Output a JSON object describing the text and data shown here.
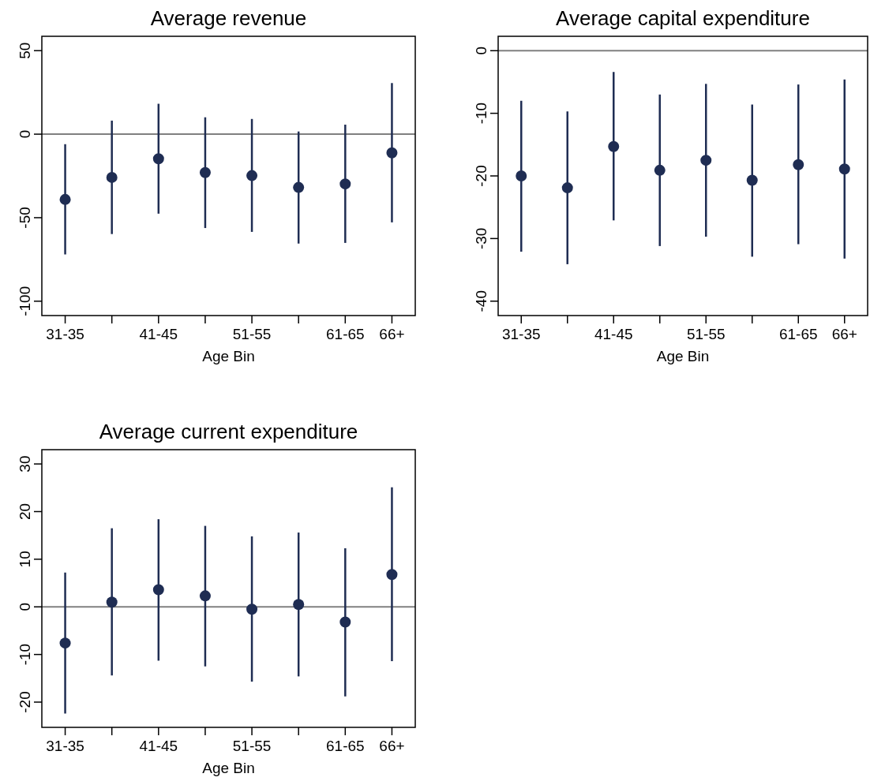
{
  "chart_data": [
    {
      "type": "scatter",
      "title": "Average revenue",
      "xlabel": "Age Bin",
      "categories": [
        "31-35",
        null,
        "41-45",
        null,
        "51-55",
        null,
        "61-65",
        "66+"
      ],
      "color": "#1f2d53",
      "marker": "circle",
      "values": [
        -39.1,
        -25.9,
        -14.7,
        -23.0,
        -24.8,
        -31.9,
        -29.8,
        -11.2
      ],
      "errors": [
        [
          -72.0,
          -6.0
        ],
        [
          -59.8,
          8.1
        ],
        [
          -47.6,
          18.2
        ],
        [
          -56.2,
          10.1
        ],
        [
          -58.5,
          9.1
        ],
        [
          -65.5,
          1.6
        ],
        [
          -65.1,
          5.7
        ],
        [
          -52.8,
          30.6
        ]
      ],
      "ylim": [
        -108.6,
        58.6
      ],
      "yticks": [
        -100,
        -50,
        0,
        50
      ],
      "ref_lines": [
        {
          "axis": "y",
          "value": 0,
          "color": "#808080"
        }
      ]
    },
    {
      "type": "scatter",
      "title": "Average capital expenditure",
      "xlabel": "Age Bin",
      "categories": [
        "31-35",
        null,
        "41-45",
        null,
        "51-55",
        null,
        "61-65",
        "66+"
      ],
      "color": "#1f2d53",
      "marker": "circle",
      "values": [
        -20.0,
        -21.9,
        -15.3,
        -19.1,
        -17.5,
        -20.7,
        -18.2,
        -18.9
      ],
      "errors": [
        [
          -32.1,
          -8.0
        ],
        [
          -34.1,
          -9.7
        ],
        [
          -27.1,
          -3.4
        ],
        [
          -31.2,
          -7.0
        ],
        [
          -29.7,
          -5.3
        ],
        [
          -32.9,
          -8.6
        ],
        [
          -30.9,
          -5.4
        ],
        [
          -33.2,
          -4.6
        ]
      ],
      "ylim": [
        -42.3,
        2.3
      ],
      "yticks": [
        -40,
        -30,
        -20,
        -10,
        0
      ],
      "ref_lines": [
        {
          "axis": "y",
          "value": 0,
          "color": "#808080"
        }
      ]
    },
    {
      "type": "scatter",
      "title": "Average current expenditure",
      "xlabel": "Age Bin",
      "categories": [
        "31-35",
        null,
        "41-45",
        null,
        "51-55",
        null,
        "61-65",
        "66+"
      ],
      "color": "#1f2d53",
      "marker": "circle",
      "values": [
        -7.6,
        1.0,
        3.6,
        2.3,
        -0.5,
        0.5,
        -3.2,
        6.8
      ],
      "errors": [
        [
          -22.4,
          7.2
        ],
        [
          -14.4,
          16.5
        ],
        [
          -11.3,
          18.4
        ],
        [
          -12.5,
          17.0
        ],
        [
          -15.7,
          14.8
        ],
        [
          -14.6,
          15.6
        ],
        [
          -18.8,
          12.3
        ],
        [
          -11.4,
          25.1
        ]
      ],
      "ylim": [
        -25.3,
        33.0
      ],
      "yticks": [
        -20,
        -10,
        0,
        10,
        20,
        30
      ],
      "ref_lines": [
        {
          "axis": "y",
          "value": 0,
          "color": "#808080"
        }
      ]
    }
  ]
}
